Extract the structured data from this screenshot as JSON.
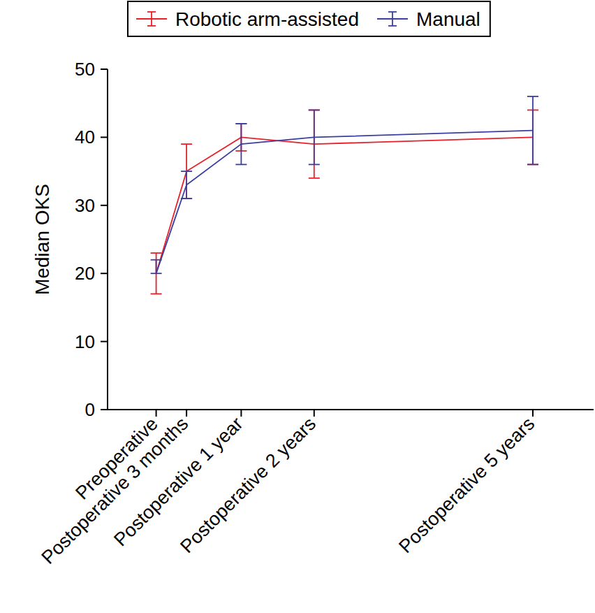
{
  "chart_data": {
    "type": "line",
    "y_label": "Median OKS",
    "legend": "top",
    "grid": false,
    "x": [
      -2,
      3,
      12,
      24,
      60
    ],
    "xlim": [
      -10,
      70
    ],
    "xticks": [
      {
        "value": -2,
        "label": "Preoperative"
      },
      {
        "value": 3,
        "label": "Postoperative 3 months"
      },
      {
        "value": 12,
        "label": "Postoperative 1 year"
      },
      {
        "value": 24,
        "label": "Postoperative 2 years"
      },
      {
        "value": 60,
        "label": "Postoperative 5 years"
      }
    ],
    "ylim": [
      0,
      50
    ],
    "yticks": [
      0,
      10,
      20,
      30,
      40,
      50
    ],
    "series": [
      {
        "name": "Robotic arm-assisted",
        "color": "#e8202a",
        "values": [
          20,
          35,
          40,
          39,
          40
        ],
        "lower": [
          17,
          31,
          38,
          34,
          36
        ],
        "upper": [
          23,
          39,
          42,
          44,
          44
        ]
      },
      {
        "name": "Manual",
        "color": "#3a3fa0",
        "values": [
          20,
          33,
          39,
          40,
          41
        ],
        "lower": [
          20,
          31,
          36,
          36,
          36
        ],
        "upper": [
          22,
          35,
          42,
          44,
          46
        ]
      }
    ]
  }
}
